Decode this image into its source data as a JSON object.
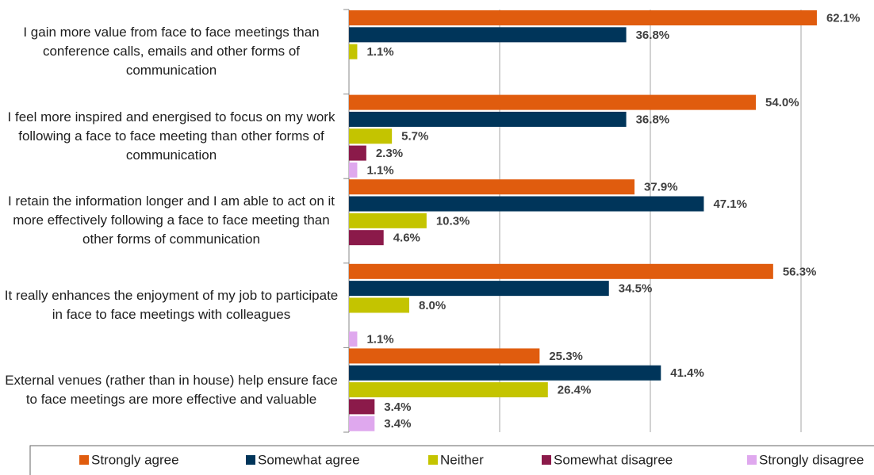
{
  "chart_data": {
    "type": "bar",
    "orientation": "horizontal",
    "categories": [
      "I gain more value from face to face meetings than conference calls, emails and other forms of communication",
      "I feel more inspired and energised to focus on my work following a face to face meeting than other forms of communication",
      "I retain the information longer and I am able to act on it more effectively following a face to face meeting than other forms of communication",
      "It really enhances the enjoyment of my job to participate in face to face meetings with colleagues",
      "External venues (rather than in house) help ensure face to face meetings are more effective and valuable"
    ],
    "series": [
      {
        "name": "Strongly agree",
        "color": "#e05c0e",
        "values": [
          62.1,
          54.0,
          37.9,
          56.3,
          25.3
        ],
        "value_labels": [
          "62.1%",
          "54.0%",
          "37.9%",
          "56.3%",
          "25.3%"
        ]
      },
      {
        "name": "Somewhat agree",
        "color": "#00355a",
        "values": [
          36.8,
          36.8,
          47.1,
          34.5,
          41.4
        ],
        "value_labels": [
          "36.8%",
          "36.8%",
          "47.1%",
          "34.5%",
          "41.4%"
        ]
      },
      {
        "name": "Neither",
        "color": "#c4c400",
        "values": [
          1.1,
          5.7,
          10.3,
          8.0,
          26.4
        ],
        "value_labels": [
          "1.1%",
          "5.7%",
          "10.3%",
          "8.0%",
          "26.4%"
        ]
      },
      {
        "name": "Somewhat disagree",
        "color": "#8b1a4a",
        "values": [
          null,
          2.3,
          4.6,
          null,
          3.4
        ],
        "value_labels": [
          null,
          "2.3%",
          "4.6%",
          null,
          "3.4%"
        ]
      },
      {
        "name": "Strongly disagree",
        "color": "#dfa8ee",
        "values": [
          null,
          1.1,
          null,
          1.1,
          3.4
        ],
        "value_labels": [
          null,
          "1.1%",
          null,
          "1.1%",
          "3.4%"
        ]
      }
    ],
    "xlim": [
      0,
      69
    ],
    "xticks": [
      0,
      20,
      40,
      60
    ],
    "grid": true,
    "legend": "bottom"
  }
}
